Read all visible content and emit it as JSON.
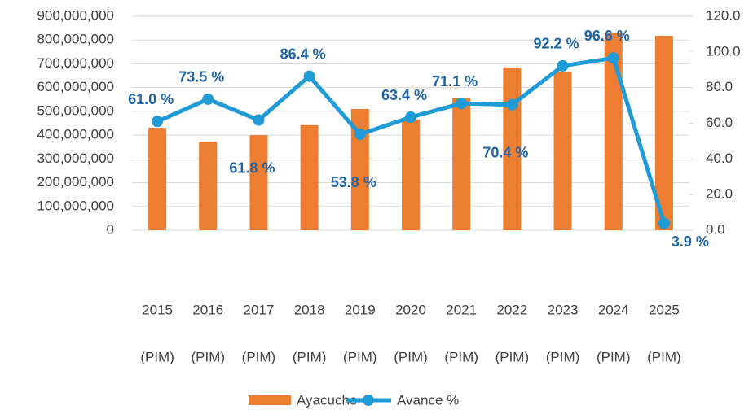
{
  "chart_data": {
    "type": "bar_line",
    "categories": [
      [
        "2015",
        "(PIM)"
      ],
      [
        "2016",
        "(PIM)"
      ],
      [
        "2017",
        "(PIM)"
      ],
      [
        "2018",
        "(PIM)"
      ],
      [
        "2019",
        "(PIM)"
      ],
      [
        "2020",
        "(PIM)"
      ],
      [
        "2021",
        "(PIM)"
      ],
      [
        "2022",
        "(PIM)"
      ],
      [
        "2023",
        "(PIM)"
      ],
      [
        "2024",
        "(PIM)"
      ],
      [
        "2025",
        "(PIM)"
      ]
    ],
    "series": [
      {
        "name": "Ayacucho",
        "type": "bar",
        "color": "#ed7d31",
        "values": [
          431000000,
          373000000,
          400000000,
          442000000,
          510000000,
          466000000,
          558000000,
          685000000,
          668000000,
          829000000,
          818000000
        ]
      },
      {
        "name": "Avance %",
        "type": "line",
        "axis": "y2",
        "color": "#1f9bd7",
        "values": [
          61.0,
          73.5,
          61.8,
          86.4,
          53.8,
          63.4,
          71.1,
          70.4,
          92.2,
          96.6,
          3.9
        ],
        "value_labels": [
          "61.0 %",
          "73.5 %",
          "61.8 %",
          "86.4 %",
          "53.8 %",
          "63.4 %",
          "71.1 %",
          "70.4 %",
          "92.2 %",
          "96.6 %",
          "3.9 %"
        ]
      }
    ],
    "ylim": [
      0,
      900000000
    ],
    "yticks": [
      {
        "value": 0,
        "label": "0"
      },
      {
        "value": 100000000,
        "label": "100,000,000"
      },
      {
        "value": 200000000,
        "label": "200,000,000"
      },
      {
        "value": 300000000,
        "label": "300,000,000"
      },
      {
        "value": 400000000,
        "label": "400,000,000"
      },
      {
        "value": 500000000,
        "label": "500,000,000"
      },
      {
        "value": 600000000,
        "label": "600,000,000"
      },
      {
        "value": 700000000,
        "label": "700,000,000"
      },
      {
        "value": 800000000,
        "label": "800,000,000"
      },
      {
        "value": 900000000,
        "label": "900,000,000"
      }
    ],
    "y2lim": [
      0,
      120
    ],
    "y2ticks": [
      {
        "value": 0,
        "label": "0.0"
      },
      {
        "value": 20,
        "label": "20.0"
      },
      {
        "value": 40,
        "label": "40.0"
      },
      {
        "value": 60,
        "label": "60.0"
      },
      {
        "value": 80,
        "label": "80.0"
      },
      {
        "value": 100,
        "label": "100.0"
      },
      {
        "value": 120,
        "label": "120.0"
      }
    ],
    "grid": true,
    "legend": "bottom"
  }
}
